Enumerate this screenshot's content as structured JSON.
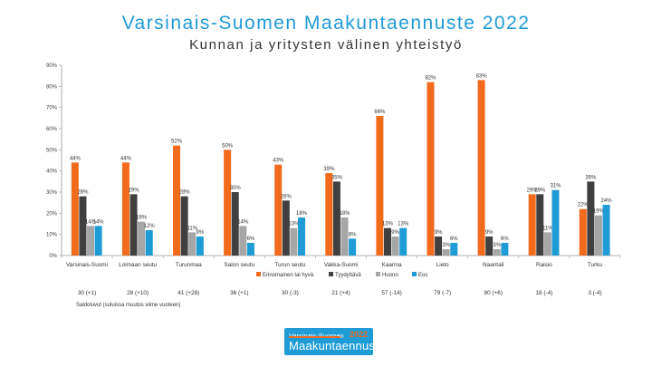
{
  "header": {
    "title": "Varsinais-Suomen Maakuntaennuste 2022",
    "subtitle": "Kunnan ja yritysten välinen yhteistyö"
  },
  "chart_data": {
    "type": "bar",
    "categories": [
      "Varsinais-Suomi",
      "Loimaan seutu",
      "Turunmaa",
      "Salon seutu",
      "Turun seutu",
      "Vakka-Suomi",
      "Kaarina",
      "Lieto",
      "Naantali",
      "Raisio",
      "Turku"
    ],
    "series": [
      {
        "name": "Erinomainen tai hyvä",
        "color": "#f26a1b",
        "values": [
          44,
          44,
          52,
          50,
          43,
          39,
          66,
          82,
          83,
          29,
          22
        ]
      },
      {
        "name": "Tyydyttävä",
        "color": "#404040",
        "values": [
          28,
          29,
          28,
          30,
          26,
          35,
          13,
          9,
          9,
          29,
          35
        ]
      },
      {
        "name": "Huono",
        "color": "#a6a6a6",
        "values": [
          14,
          16,
          11,
          14,
          13,
          18,
          9,
          3,
          3,
          11,
          19
        ]
      },
      {
        "name": "Eos",
        "color": "#1f9bd6",
        "values": [
          14,
          12,
          9,
          6,
          18,
          8,
          13,
          6,
          6,
          31,
          24
        ]
      }
    ],
    "ylim": [
      0,
      90
    ],
    "yticks": [
      "0%",
      "10%",
      "20%",
      "30%",
      "40%",
      "50%",
      "60%",
      "70%",
      "80%",
      "90%"
    ],
    "value_suffix": "%",
    "legend_position": "bottom",
    "grid": false
  },
  "saldo": {
    "values": [
      "30 (+1)",
      "28 (+10)",
      "41 (+28)",
      "36 (+1)",
      "30 (-3)",
      "21 (+4)",
      "57 (-14)",
      "79 (-7)",
      "80 (+6)",
      "18 (-4)",
      "3 (-4)"
    ],
    "note": "Saldoluvut (suluissa muutos viime vuoteen)"
  },
  "logo": {
    "line1": "Varsinais-Suomen",
    "line2": "Maakuntaennuste",
    "year": "2022"
  }
}
